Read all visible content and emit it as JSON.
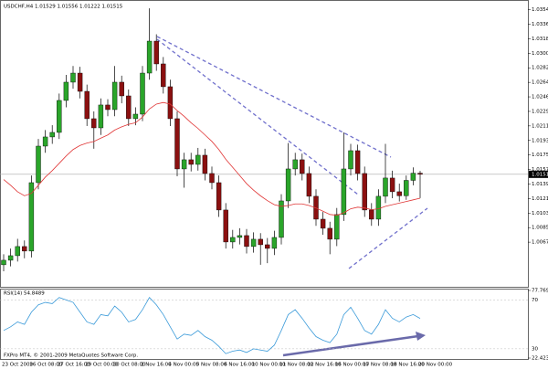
{
  "chart_data": [
    {
      "type": "candlestick",
      "title": "USDCHF,H4 1.01529 1.01556 1.01222 1.01515",
      "categories": [
        "23 Oct 2009",
        null,
        null,
        null,
        "26 Oct 08:00",
        null,
        null,
        null,
        "27 Oct 16:00",
        null,
        null,
        null,
        "29 Oct 00:00",
        null,
        null,
        null,
        "30 Oct 08:00",
        null,
        null,
        null,
        "2 Nov 16:00",
        null,
        null,
        null,
        "4 Nov 00:00",
        null,
        null,
        null,
        "5 Nov 08:00",
        null,
        null,
        null,
        "6 Nov 16:00",
        null,
        null,
        null,
        "10 Nov 00:00",
        null,
        null,
        null,
        "11 Nov 08:00",
        null,
        null,
        null,
        "12 Nov 16:00",
        null,
        null,
        null,
        "16 Nov 00:00",
        null,
        null,
        null,
        "17 Nov 08:00",
        null,
        null,
        null,
        "18 Nov 16:00",
        null,
        null,
        null,
        "20 Nov 00:00"
      ],
      "ohlc": [
        [
          1.004,
          1.0053,
          1.0032,
          1.00456
        ],
        [
          1.00456,
          1.006,
          1.0038,
          1.00512
        ],
        [
          1.00512,
          1.0072,
          1.0044,
          1.00625
        ],
        [
          1.00625,
          1.007,
          1.0048,
          1.00569
        ],
        [
          1.00569,
          1.015,
          1.0049,
          1.01412
        ],
        [
          1.01412,
          1.0195,
          1.0133,
          1.01862
        ],
        [
          1.01862,
          1.0206,
          1.0178,
          1.01975
        ],
        [
          1.01975,
          1.0212,
          1.0189,
          1.02031
        ],
        [
          1.02031,
          1.0251,
          1.0195,
          1.02425
        ],
        [
          1.02425,
          1.0274,
          1.0234,
          1.0265
        ],
        [
          1.0265,
          1.0285,
          1.0257,
          1.02762
        ],
        [
          1.02762,
          1.0284,
          1.0245,
          1.02537
        ],
        [
          1.02537,
          1.0262,
          1.0211,
          1.022
        ],
        [
          1.022,
          1.0229,
          1.0183,
          1.02087
        ],
        [
          1.02087,
          1.0245,
          1.02,
          1.02369
        ],
        [
          1.02369,
          1.0244,
          1.0223,
          1.02312
        ],
        [
          1.02312,
          1.0285,
          1.0223,
          1.0265
        ],
        [
          1.0265,
          1.0273,
          1.0239,
          1.02481
        ],
        [
          1.02481,
          1.0256,
          1.0211,
          1.022
        ],
        [
          1.022,
          1.0234,
          1.0212,
          1.02256
        ],
        [
          1.02256,
          1.0285,
          1.0217,
          1.02762
        ],
        [
          1.02762,
          1.0356,
          1.0268,
          1.03156
        ],
        [
          1.03156,
          1.0324,
          1.0279,
          1.02875
        ],
        [
          1.02875,
          1.0296,
          1.0251,
          1.02594
        ],
        [
          1.02594,
          1.0268,
          1.0211,
          1.022
        ],
        [
          1.022,
          1.0229,
          1.0149,
          1.01581
        ],
        [
          1.01581,
          1.0178,
          1.0135,
          1.01694
        ],
        [
          1.01694,
          1.0178,
          1.0155,
          1.01637
        ],
        [
          1.01637,
          1.0184,
          1.0156,
          1.0175
        ],
        [
          1.0175,
          1.0183,
          1.0144,
          1.01525
        ],
        [
          1.01525,
          1.0161,
          1.0133,
          1.01412
        ],
        [
          1.01412,
          1.015,
          1.0099,
          1.01075
        ],
        [
          1.01075,
          1.0116,
          1.006,
          1.00681
        ],
        [
          1.00681,
          1.0083,
          1.006,
          1.00737
        ],
        [
          1.00737,
          1.0085,
          1.0065,
          1.0076
        ],
        [
          1.0076,
          1.0084,
          1.0054,
          1.00625
        ],
        [
          1.00625,
          1.008,
          1.0055,
          1.00715
        ],
        [
          1.00715,
          1.0079,
          1.004,
          1.00647
        ],
        [
          1.00647,
          1.0073,
          1.0042,
          1.00602
        ],
        [
          1.00602,
          1.0082,
          1.0052,
          1.00737
        ],
        [
          1.00737,
          1.0127,
          1.0065,
          1.01187
        ],
        [
          1.01187,
          1.019,
          1.011,
          1.01581
        ],
        [
          1.01581,
          1.0178,
          1.015,
          1.01694
        ],
        [
          1.01694,
          1.0177,
          1.0144,
          1.01525
        ],
        [
          1.01525,
          1.0161,
          1.0116,
          1.01244
        ],
        [
          1.01244,
          1.0133,
          1.0088,
          1.00962
        ],
        [
          1.00962,
          1.0105,
          1.0077,
          1.0085
        ],
        [
          1.0085,
          1.0093,
          1.0053,
          1.00715
        ],
        [
          1.00715,
          1.011,
          1.0063,
          1.01019
        ],
        [
          1.01019,
          1.0203,
          1.0094,
          1.01581
        ],
        [
          1.01581,
          1.0189,
          1.015,
          1.01806
        ],
        [
          1.01806,
          1.0188,
          1.0144,
          1.01525
        ],
        [
          1.01525,
          1.0161,
          1.0099,
          1.01075
        ],
        [
          1.01075,
          1.0116,
          1.0088,
          1.00962
        ],
        [
          1.00962,
          1.0133,
          1.0088,
          1.01244
        ],
        [
          1.01244,
          1.0189,
          1.0116,
          1.01469
        ],
        [
          1.01469,
          1.0156,
          1.0122,
          1.013
        ],
        [
          1.013,
          1.014,
          1.0118,
          1.0125
        ],
        [
          1.0125,
          1.015,
          1.012,
          1.0144
        ],
        [
          1.0144,
          1.016,
          1.0138,
          1.01529
        ],
        [
          1.01529,
          1.01556,
          1.01222,
          1.01515
        ]
      ],
      "ma": [
        1.0145,
        1.0138,
        1.013,
        1.0125,
        1.0128,
        1.0138,
        1.0148,
        1.0156,
        1.0165,
        1.0174,
        1.0182,
        1.0187,
        1.019,
        1.0192,
        1.0196,
        1.02,
        1.0206,
        1.021,
        1.0213,
        1.0215,
        1.0222,
        1.0232,
        1.0238,
        1.024,
        1.0238,
        1.023,
        1.0223,
        1.0215,
        1.0208,
        1.02,
        1.0192,
        1.0182,
        1.017,
        1.016,
        1.015,
        1.014,
        1.0132,
        1.0125,
        1.0119,
        1.0114,
        1.0112,
        1.0113,
        1.0115,
        1.0115,
        1.0113,
        1.011,
        1.0106,
        1.0102,
        1.0101,
        1.0104,
        1.0109,
        1.0111,
        1.011,
        1.0108,
        1.0109,
        1.0112,
        1.0114,
        1.0116,
        1.0118,
        1.012,
        1.0122
      ],
      "up_color": "#2aa52a",
      "down_color": "#8b1010",
      "ma_color": "#e03535",
      "ylim": [
        1.0014,
        1.0364
      ],
      "yticks": [
        1.03543,
        1.03364,
        1.03185,
        1.03006,
        1.02827,
        1.02648,
        1.02469,
        1.0229,
        1.02111,
        1.01932,
        1.01753,
        1.01574,
        1.01395,
        1.01216,
        1.01037,
        1.00858,
        1.00679
      ]
    },
    {
      "type": "line",
      "title": "RSI(14) 54.8489",
      "color": "#3a9ad9",
      "values": [
        45,
        48,
        52,
        50,
        60,
        66,
        68,
        67,
        72,
        70,
        68,
        60,
        52,
        50,
        58,
        57,
        65,
        60,
        52,
        54,
        62,
        72,
        66,
        58,
        48,
        38,
        42,
        41,
        45,
        40,
        37,
        32,
        26,
        28,
        29,
        27,
        30,
        29,
        28,
        33,
        45,
        58,
        62,
        55,
        47,
        40,
        37,
        35,
        42,
        58,
        64,
        55,
        45,
        42,
        50,
        62,
        55,
        52,
        56,
        58,
        54.8489
      ],
      "ylim": [
        22.4236,
        77.7694
      ],
      "yticks": [
        77.7694,
        70,
        30,
        22.4236
      ]
    }
  ],
  "footer": "FXPro MT4, © 2001-2009 MetaQuotes Software Corp."
}
